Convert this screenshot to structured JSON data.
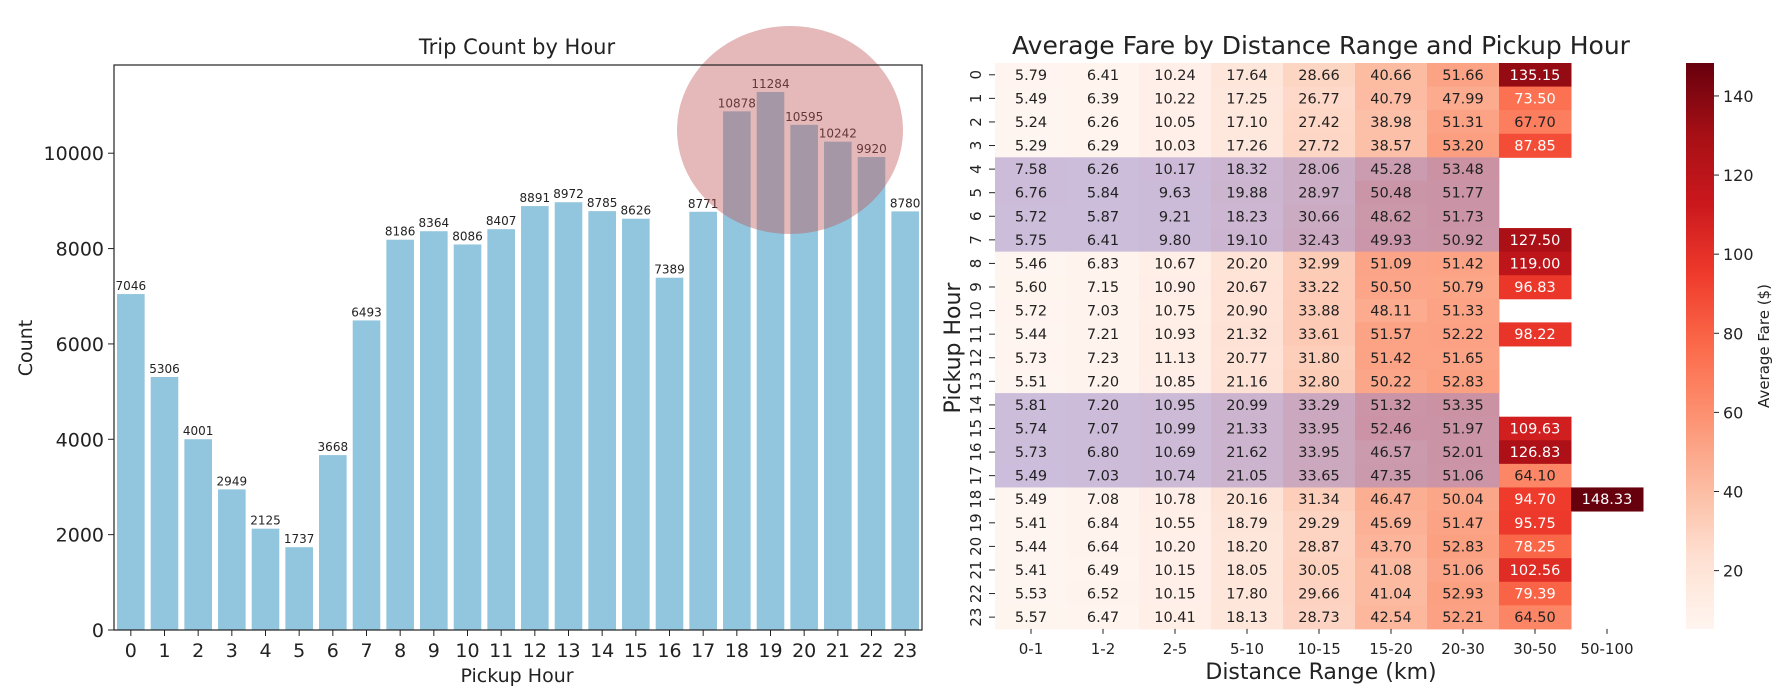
{
  "chart_data": [
    {
      "type": "bar",
      "title": "Trip Count by Hour",
      "xlabel": "Pickup Hour",
      "ylabel": "Count",
      "categories": [
        "0",
        "1",
        "2",
        "3",
        "4",
        "5",
        "6",
        "7",
        "8",
        "9",
        "10",
        "11",
        "12",
        "13",
        "14",
        "15",
        "16",
        "17",
        "18",
        "19",
        "20",
        "21",
        "22",
        "23"
      ],
      "values": [
        7046,
        5306,
        4001,
        2949,
        2125,
        1737,
        3668,
        6493,
        8186,
        8364,
        8086,
        8407,
        8891,
        8972,
        8785,
        8626,
        7389,
        8771,
        10878,
        11284,
        10595,
        10242,
        9920,
        8780
      ],
      "ylim": [
        0,
        11850
      ],
      "yticks": [
        "0",
        "2000",
        "4000",
        "6000",
        "8000",
        "10000"
      ],
      "bar_color": "#92c5de",
      "annotation": {
        "type": "ellipse-highlight",
        "color": "#d9a0a0",
        "covers_categories": [
          "18",
          "19",
          "20",
          "21",
          "22"
        ]
      }
    },
    {
      "type": "heatmap",
      "title": "Average Fare by Distance Range and Pickup Hour",
      "xlabel": "Distance Range (km)",
      "ylabel": "Pickup Hour",
      "x": [
        "0-1",
        "1-2",
        "2-5",
        "5-10",
        "10-15",
        "15-20",
        "20-30",
        "30-50",
        "50-100"
      ],
      "y": [
        "0",
        "1",
        "2",
        "3",
        "4",
        "5",
        "6",
        "7",
        "8",
        "9",
        "10",
        "11",
        "12",
        "13",
        "14",
        "15",
        "16",
        "17",
        "18",
        "19",
        "20",
        "21",
        "22",
        "23"
      ],
      "values": [
        [
          5.79,
          6.41,
          10.24,
          17.64,
          28.66,
          40.66,
          51.66,
          135.15,
          null
        ],
        [
          5.49,
          6.39,
          10.22,
          17.25,
          26.77,
          40.79,
          47.99,
          73.5,
          null
        ],
        [
          5.24,
          6.26,
          10.05,
          17.1,
          27.42,
          38.98,
          51.31,
          67.7,
          null
        ],
        [
          5.29,
          6.29,
          10.03,
          17.26,
          27.72,
          38.57,
          53.2,
          87.85,
          null
        ],
        [
          7.58,
          6.26,
          10.17,
          18.32,
          28.06,
          45.28,
          53.48,
          null,
          null
        ],
        [
          6.76,
          5.84,
          9.63,
          19.88,
          28.97,
          50.48,
          51.77,
          null,
          null
        ],
        [
          5.72,
          5.87,
          9.21,
          18.23,
          30.66,
          48.62,
          51.73,
          null,
          null
        ],
        [
          5.75,
          6.41,
          9.8,
          19.1,
          32.43,
          49.93,
          50.92,
          127.5,
          null
        ],
        [
          5.46,
          6.83,
          10.67,
          20.2,
          32.99,
          51.09,
          51.42,
          119.0,
          null
        ],
        [
          5.6,
          7.15,
          10.9,
          20.67,
          33.22,
          50.5,
          50.79,
          96.83,
          null
        ],
        [
          5.72,
          7.03,
          10.75,
          20.9,
          33.88,
          48.11,
          51.33,
          null,
          null
        ],
        [
          5.44,
          7.21,
          10.93,
          21.32,
          33.61,
          51.57,
          52.22,
          98.22,
          null
        ],
        [
          5.73,
          7.23,
          11.13,
          20.77,
          31.8,
          51.42,
          51.65,
          null,
          null
        ],
        [
          5.51,
          7.2,
          10.85,
          21.16,
          32.8,
          50.22,
          52.83,
          null,
          null
        ],
        [
          5.81,
          7.2,
          10.95,
          20.99,
          33.29,
          51.32,
          53.35,
          null,
          null
        ],
        [
          5.74,
          7.07,
          10.99,
          21.33,
          33.95,
          52.46,
          51.97,
          109.63,
          null
        ],
        [
          5.73,
          6.8,
          10.69,
          21.62,
          33.95,
          46.57,
          52.01,
          126.83,
          null
        ],
        [
          5.49,
          7.03,
          10.74,
          21.05,
          33.65,
          47.35,
          51.06,
          64.1,
          null
        ],
        [
          5.49,
          7.08,
          10.78,
          20.16,
          31.34,
          46.47,
          50.04,
          94.7,
          148.33
        ],
        [
          5.41,
          6.84,
          10.55,
          18.79,
          29.29,
          45.69,
          51.47,
          95.75,
          null
        ],
        [
          5.44,
          6.64,
          10.2,
          18.2,
          28.87,
          43.7,
          52.83,
          78.25,
          null
        ],
        [
          5.41,
          6.49,
          10.15,
          18.05,
          30.05,
          41.08,
          51.06,
          102.56,
          null
        ],
        [
          5.53,
          6.52,
          10.15,
          17.8,
          29.66,
          41.04,
          52.93,
          79.39,
          null
        ],
        [
          5.57,
          6.47,
          10.41,
          18.13,
          28.73,
          42.54,
          52.21,
          64.5,
          null
        ]
      ],
      "colormap": "Reds",
      "vmin": 5.24,
      "vmax": 148.33,
      "colorbar": {
        "label": "Average Fare ($)",
        "ticks": [
          "20",
          "40",
          "60",
          "80",
          "100",
          "120",
          "140"
        ]
      },
      "highlight_bands": [
        {
          "rows": [
            "4",
            "5",
            "6",
            "7"
          ],
          "columns": [
            "0-1",
            "1-2",
            "2-5",
            "5-10",
            "10-15",
            "15-20",
            "20-30"
          ],
          "color": "#9a86c8"
        },
        {
          "rows": [
            "14",
            "15",
            "16",
            "17"
          ],
          "columns": [
            "0-1",
            "1-2",
            "2-5",
            "5-10",
            "10-15",
            "15-20",
            "20-30"
          ],
          "color": "#9a86c8"
        }
      ]
    }
  ]
}
